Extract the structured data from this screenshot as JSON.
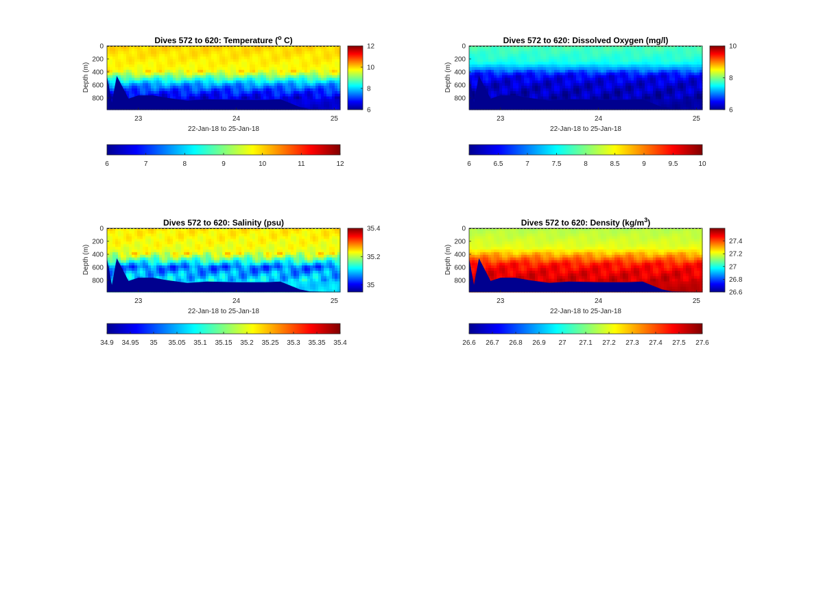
{
  "figure": {
    "colormap": "jet",
    "terrain_color": "#00008f"
  },
  "chart_data": [
    {
      "type": "heatmap",
      "variable": "temperature",
      "title": "Dives 572 to 620: Temperature (",
      "title_sup": "o",
      "title_tail": " C)",
      "xlabel": "22-Jan-18 to 25-Jan-18",
      "ylabel": "Depth (m)",
      "xlim": [
        22.68,
        25.06
      ],
      "x_ticks": [
        23,
        24,
        25
      ],
      "x_tick_labels": [
        "23",
        "24",
        "25"
      ],
      "ylim": [
        0,
        980
      ],
      "y_reversed": true,
      "y_ticks": [
        0,
        200,
        400,
        600,
        800
      ],
      "y_tick_labels": [
        "0",
        "200",
        "400",
        "600",
        "800"
      ],
      "clim": [
        6,
        12
      ],
      "side_colorbar_ticks": [
        6,
        8,
        10,
        12
      ],
      "side_colorbar_labels": [
        "6",
        "8",
        "10",
        "12"
      ],
      "bottom_colorbar_ticks": [
        6,
        7,
        8,
        9,
        10,
        11,
        12
      ],
      "bottom_colorbar_labels": [
        "6",
        "7",
        "8",
        "9",
        "10",
        "11",
        "12"
      ],
      "profile": [
        {
          "depth": 0,
          "value": 10
        },
        {
          "depth": 400,
          "value": 9.7
        },
        {
          "depth": 500,
          "value": 8.6
        },
        {
          "depth": 600,
          "value": 7.6
        },
        {
          "depth": 700,
          "value": 7.0
        },
        {
          "depth": 800,
          "value": 6.6
        },
        {
          "depth": 980,
          "value": 6.4
        }
      ],
      "variability": 0.45
    },
    {
      "type": "heatmap",
      "variable": "dissolved_oxygen",
      "title": "Dives 572 to 620: Dissolved Oxygen (mg/l)",
      "title_sup": "",
      "title_tail": "",
      "xlabel": "22-Jan-18 to 25-Jan-18",
      "ylabel": "Depth (m)",
      "xlim": [
        22.68,
        25.06
      ],
      "x_ticks": [
        23,
        24,
        25
      ],
      "x_tick_labels": [
        "23",
        "24",
        "25"
      ],
      "ylim": [
        0,
        980
      ],
      "y_reversed": true,
      "y_ticks": [
        0,
        200,
        400,
        600,
        800
      ],
      "y_tick_labels": [
        "0",
        "200",
        "400",
        "600",
        "800"
      ],
      "clim": [
        6,
        10
      ],
      "side_colorbar_ticks": [
        6,
        8,
        10
      ],
      "side_colorbar_labels": [
        "6",
        "8",
        "10"
      ],
      "bottom_colorbar_ticks": [
        6,
        6.5,
        7,
        7.5,
        8,
        8.5,
        9,
        9.5,
        10
      ],
      "bottom_colorbar_labels": [
        "6",
        "6.5",
        "7",
        "7.5",
        "8",
        "8.5",
        "9",
        "9.5",
        "10"
      ],
      "profile": [
        {
          "depth": 0,
          "value": 7.8
        },
        {
          "depth": 250,
          "value": 7.6
        },
        {
          "depth": 350,
          "value": 7.1
        },
        {
          "depth": 450,
          "value": 6.5
        },
        {
          "depth": 600,
          "value": 6.3
        },
        {
          "depth": 980,
          "value": 6.1
        }
      ],
      "variability": 0.25
    },
    {
      "type": "heatmap",
      "variable": "salinity",
      "title": "Dives 572 to 620: Salinity (psu)",
      "title_sup": "",
      "title_tail": "",
      "xlabel": "22-Jan-18 to 25-Jan-18",
      "ylabel": "Depth (m)",
      "xlim": [
        22.68,
        25.06
      ],
      "x_ticks": [
        23,
        24,
        25
      ],
      "x_tick_labels": [
        "23",
        "24",
        "25"
      ],
      "ylim": [
        0,
        980
      ],
      "y_reversed": true,
      "y_ticks": [
        0,
        200,
        400,
        600,
        800
      ],
      "y_tick_labels": [
        "0",
        "200",
        "400",
        "600",
        "800"
      ],
      "clim": [
        34.95,
        35.4
      ],
      "side_colorbar_ticks": [
        35,
        35.2,
        35.4
      ],
      "side_colorbar_labels": [
        "35",
        "35.2",
        "35.4"
      ],
      "bottom_clim": [
        34.9,
        35.4
      ],
      "bottom_colorbar_ticks": [
        34.9,
        34.95,
        35,
        35.05,
        35.1,
        35.15,
        35.2,
        35.25,
        35.3,
        35.35,
        35.4
      ],
      "bottom_colorbar_labels": [
        "34.9",
        "34.95",
        "35",
        "35.05",
        "35.1",
        "35.15",
        "35.2",
        "35.25",
        "35.3",
        "35.35",
        "35.4"
      ],
      "profile": [
        {
          "depth": 0,
          "value": 35.24
        },
        {
          "depth": 400,
          "value": 35.22
        },
        {
          "depth": 500,
          "value": 35.14
        },
        {
          "depth": 600,
          "value": 35.05
        },
        {
          "depth": 700,
          "value": 35.08
        },
        {
          "depth": 800,
          "value": 35.1
        },
        {
          "depth": 980,
          "value": 35.1
        }
      ],
      "variability": 0.05
    },
    {
      "type": "heatmap",
      "variable": "density",
      "title": "Dives 572 to 620: Density (kg/m",
      "title_sup": "3",
      "title_tail": ")",
      "xlabel": "22-Jan-18 to 25-Jan-18",
      "ylabel": "Depth (m)",
      "xlim": [
        22.68,
        25.06
      ],
      "x_ticks": [
        23,
        24,
        25
      ],
      "x_tick_labels": [
        "23",
        "24",
        "25"
      ],
      "ylim": [
        0,
        980
      ],
      "y_reversed": true,
      "y_ticks": [
        0,
        200,
        400,
        600,
        800
      ],
      "y_tick_labels": [
        "0",
        "200",
        "400",
        "600",
        "800"
      ],
      "clim": [
        26.6,
        27.6
      ],
      "side_colorbar_ticks": [
        26.6,
        26.8,
        27,
        27.2,
        27.4
      ],
      "side_colorbar_labels": [
        "26.6",
        "26.8",
        "27",
        "27.2",
        "27.4"
      ],
      "bottom_colorbar_ticks": [
        26.6,
        26.7,
        26.8,
        26.9,
        27,
        27.1,
        27.2,
        27.3,
        27.4,
        27.5,
        27.6
      ],
      "bottom_colorbar_labels": [
        "26.6",
        "26.7",
        "26.8",
        "26.9",
        "27",
        "27.1",
        "27.2",
        "27.3",
        "27.4",
        "27.5",
        "27.6"
      ],
      "profile": [
        {
          "depth": 0,
          "value": 27.15
        },
        {
          "depth": 300,
          "value": 27.2
        },
        {
          "depth": 450,
          "value": 27.35
        },
        {
          "depth": 550,
          "value": 27.45
        },
        {
          "depth": 700,
          "value": 27.5
        },
        {
          "depth": 980,
          "value": 27.55
        }
      ],
      "variability": 0.05
    }
  ],
  "bottom_terrain": [
    {
      "x": 22.68,
      "depth": 460
    },
    {
      "x": 22.73,
      "depth": 870
    },
    {
      "x": 22.78,
      "depth": 460
    },
    {
      "x": 22.9,
      "depth": 810
    },
    {
      "x": 23.0,
      "depth": 760
    },
    {
      "x": 23.15,
      "depth": 760
    },
    {
      "x": 23.3,
      "depth": 800
    },
    {
      "x": 23.5,
      "depth": 840
    },
    {
      "x": 23.7,
      "depth": 820
    },
    {
      "x": 24.0,
      "depth": 830
    },
    {
      "x": 24.3,
      "depth": 830
    },
    {
      "x": 24.45,
      "depth": 820
    },
    {
      "x": 24.55,
      "depth": 880
    },
    {
      "x": 24.65,
      "depth": 940
    },
    {
      "x": 24.75,
      "depth": 970
    },
    {
      "x": 24.9,
      "depth": 975
    },
    {
      "x": 25.06,
      "depth": 980
    }
  ]
}
